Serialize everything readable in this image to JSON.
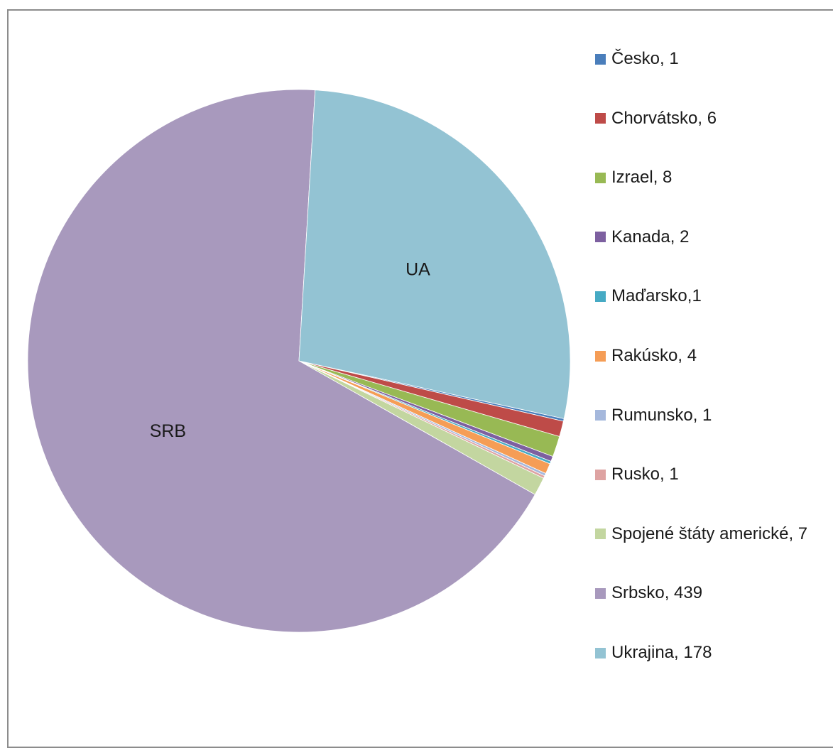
{
  "chart_data": {
    "type": "pie",
    "title": "",
    "legend_position": "right",
    "slices": [
      {
        "legend_label": "Česko, 1",
        "slice_label": "",
        "value": 1,
        "color": "#4a7ebb"
      },
      {
        "legend_label": "Chorvátsko, 6",
        "slice_label": "",
        "value": 6,
        "color": "#be4b48"
      },
      {
        "legend_label": "Izrael, 8",
        "slice_label": "",
        "value": 8,
        "color": "#98b954"
      },
      {
        "legend_label": "Kanada, 2",
        "slice_label": "",
        "value": 2,
        "color": "#7d60a0"
      },
      {
        "legend_label": "Maďarsko,1",
        "slice_label": "",
        "value": 1,
        "color": "#46aac4"
      },
      {
        "legend_label": "Rakúsko, 4",
        "slice_label": "",
        "value": 4,
        "color": "#f59d56"
      },
      {
        "legend_label": "Rumunsko, 1",
        "slice_label": "",
        "value": 1,
        "color": "#a5b8dc"
      },
      {
        "legend_label": "Rusko, 1",
        "slice_label": "",
        "value": 1,
        "color": "#dea3a2"
      },
      {
        "legend_label": "Spojené štáty americké, 7",
        "slice_label": "",
        "value": 7,
        "color": "#c3d6a0"
      },
      {
        "legend_label": "Srbsko, 439",
        "slice_label": "SRB",
        "value": 439,
        "color": "#a899bd"
      },
      {
        "legend_label": "Ukrajina, 178",
        "slice_label": "UA",
        "value": 178,
        "color": "#93c3d3"
      }
    ]
  }
}
